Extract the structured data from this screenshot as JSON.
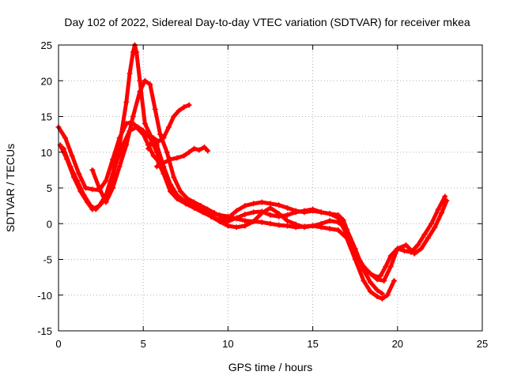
{
  "chart_data": {
    "type": "line",
    "title": "Day 102 of 2022, Sidereal Day-to-day VTEC variation (SDTVAR) for receiver mkea",
    "xlabel": "GPS time / hours",
    "ylabel": "SDTVAR / TECUs",
    "xlim": [
      0,
      25
    ],
    "ylim": [
      -15,
      25
    ],
    "xticks": [
      0,
      5,
      10,
      15,
      20,
      25
    ],
    "yticks": [
      -15,
      -10,
      -5,
      0,
      5,
      10,
      15,
      20,
      25
    ],
    "grid": true,
    "marker": "plus",
    "color": "#ff0000",
    "series": [
      {
        "name": "trace-1",
        "x": [
          0,
          0.4,
          0.8,
          1.2,
          1.6,
          2.0,
          2.4,
          2.8,
          3.2,
          3.6,
          4.0,
          4.3,
          4.5,
          4.7,
          5.0,
          5.4,
          5.8,
          6.2,
          6.6,
          7.0,
          7.5,
          8.0,
          8.5,
          9.0,
          9.5,
          10.0,
          10.5,
          11.0,
          11.5,
          12.0,
          12.5,
          13.0,
          13.5,
          14.0,
          14.5,
          15.0,
          15.5,
          16.0,
          16.5,
          16.8,
          17.2,
          17.6,
          18.0,
          18.4,
          18.8,
          19.0,
          19.3,
          19.6,
          20.0,
          20.4,
          20.8,
          21.2,
          21.6,
          22.0,
          22.4,
          22.8
        ],
        "y": [
          13.5,
          12,
          9.5,
          7,
          5,
          4.8,
          4.7,
          6,
          9,
          12,
          14,
          14.2,
          13.8,
          13.5,
          13,
          12,
          10,
          7,
          4.5,
          3.5,
          3,
          2.5,
          2,
          1,
          0.5,
          0.3,
          0.8,
          1.3,
          1.6,
          1.7,
          1.2,
          1,
          1.2,
          1.6,
          1.8,
          2,
          1.6,
          1.4,
          1.2,
          0.5,
          -2,
          -4.5,
          -6,
          -7,
          -7.5,
          -7.3,
          -6,
          -4.5,
          -3.5,
          -3.8,
          -4,
          -3,
          -1.5,
          0,
          2,
          3.8
        ]
      },
      {
        "name": "trace-2",
        "x": [
          0.1,
          0.5,
          0.9,
          1.3,
          1.7,
          2.0,
          2.4,
          2.8,
          3.2,
          3.6,
          4.0,
          4.2,
          4.4,
          4.5,
          4.6,
          4.8,
          5.1,
          5.5,
          5.8,
          6.2,
          6.6,
          7.0,
          7.5,
          8.0,
          8.5,
          9.0,
          9.5,
          10.0,
          10.5,
          11.0,
          11.5,
          12.0,
          12.5,
          13.0,
          13.5,
          14.0,
          14.5,
          15.0,
          15.5,
          16.0,
          16.5,
          17.0,
          17.5,
          18.0,
          18.4,
          18.8,
          19.1,
          19.4,
          19.8
        ],
        "y": [
          11,
          9,
          6.5,
          4.5,
          3,
          2,
          2.5,
          4,
          7,
          11,
          17,
          21,
          24,
          25,
          24,
          20,
          14,
          12,
          11,
          8,
          5.5,
          4,
          3,
          2.5,
          2,
          1.5,
          1.2,
          1,
          0.7,
          0.4,
          0.3,
          0.2,
          0,
          -0.2,
          -0.3,
          -0.5,
          -0.4,
          -0.3,
          -0.5,
          -0.7,
          -0.9,
          -2,
          -5,
          -8,
          -9.5,
          -10.2,
          -10.5,
          -10,
          -8
        ]
      },
      {
        "name": "trace-3",
        "x": [
          0.3,
          0.7,
          1.1,
          1.5,
          1.9,
          2.2,
          2.6,
          3.0,
          3.4,
          3.8,
          4.2,
          4.6,
          5.0,
          5.3,
          5.6,
          5.8,
          6.2,
          6.6,
          7.0,
          7.5,
          8.0,
          8.5,
          9.0,
          9.5,
          10.0,
          10.5,
          11.0,
          11.5,
          12.0,
          12.5,
          13.0,
          13.5,
          14.0,
          14.5,
          15.0,
          15.5,
          16.0,
          16.5,
          17.0,
          17.5,
          18.0,
          18.4,
          18.8,
          19.1
        ],
        "y": [
          10.5,
          8,
          6,
          4,
          2.5,
          2,
          3,
          5,
          8.5,
          11,
          13,
          13.5,
          12.5,
          11,
          9.5,
          9,
          7,
          5,
          3.5,
          2.8,
          2.2,
          1.6,
          1,
          0.3,
          -0.3,
          -0.5,
          -0.3,
          0.3,
          1.5,
          2.2,
          1.4,
          0.4,
          -0.1,
          -0.5,
          -0.3,
          0,
          0.4,
          0.2,
          -0.8,
          -3.5,
          -6.5,
          -8.2,
          -9.3,
          -9.8
        ]
      },
      {
        "name": "trace-4",
        "x": [
          2.0,
          2.4,
          2.8,
          3.2,
          3.6,
          4.0,
          4.4,
          4.8,
          5.1,
          5.4,
          5.7,
          6.0,
          6.4,
          6.8,
          7.2,
          7.6,
          8.0,
          8.4,
          8.8,
          9.2,
          9.6,
          10.0,
          10.5,
          11.0,
          11.5,
          12.0,
          12.5,
          13.0,
          13.5,
          14.0,
          14.5,
          15.0,
          15.5,
          16.0,
          16.5,
          17.0,
          17.5,
          18.0,
          18.4,
          18.8,
          19.2,
          19.6,
          20.0,
          20.5,
          21.0,
          21.4,
          21.8,
          22.2,
          22.6,
          22.9
        ],
        "y": [
          7.5,
          5,
          3,
          5,
          8,
          11,
          15,
          18.5,
          20,
          19.5,
          16,
          12.5,
          10,
          6.5,
          4.5,
          3.5,
          3,
          2.5,
          2,
          1.5,
          1,
          0.8,
          1.8,
          2.5,
          2.8,
          3,
          2.8,
          2.6,
          2.2,
          1.8,
          1.6,
          1.8,
          1.6,
          1.4,
          0.8,
          -1.5,
          -4,
          -6,
          -7,
          -7.8,
          -8,
          -6,
          -3.5,
          -3,
          -4.2,
          -3.5,
          -2,
          -0.5,
          1.5,
          3.2
        ]
      },
      {
        "name": "trace-5",
        "x": [
          5.3,
          5.6,
          5.9,
          6.2,
          6.5,
          6.8,
          7.1,
          7.4,
          7.7
        ],
        "y": [
          10.5,
          12,
          11.5,
          12,
          13.5,
          15,
          15.8,
          16.3,
          16.6
        ]
      },
      {
        "name": "trace-6",
        "x": [
          5.8,
          6.2,
          6.6,
          7.0,
          7.4,
          7.7,
          8.0,
          8.3,
          8.6,
          8.8
        ],
        "y": [
          8,
          8.5,
          9,
          9.2,
          9.5,
          10,
          10.5,
          10.3,
          10.7,
          10.2
        ]
      }
    ]
  }
}
